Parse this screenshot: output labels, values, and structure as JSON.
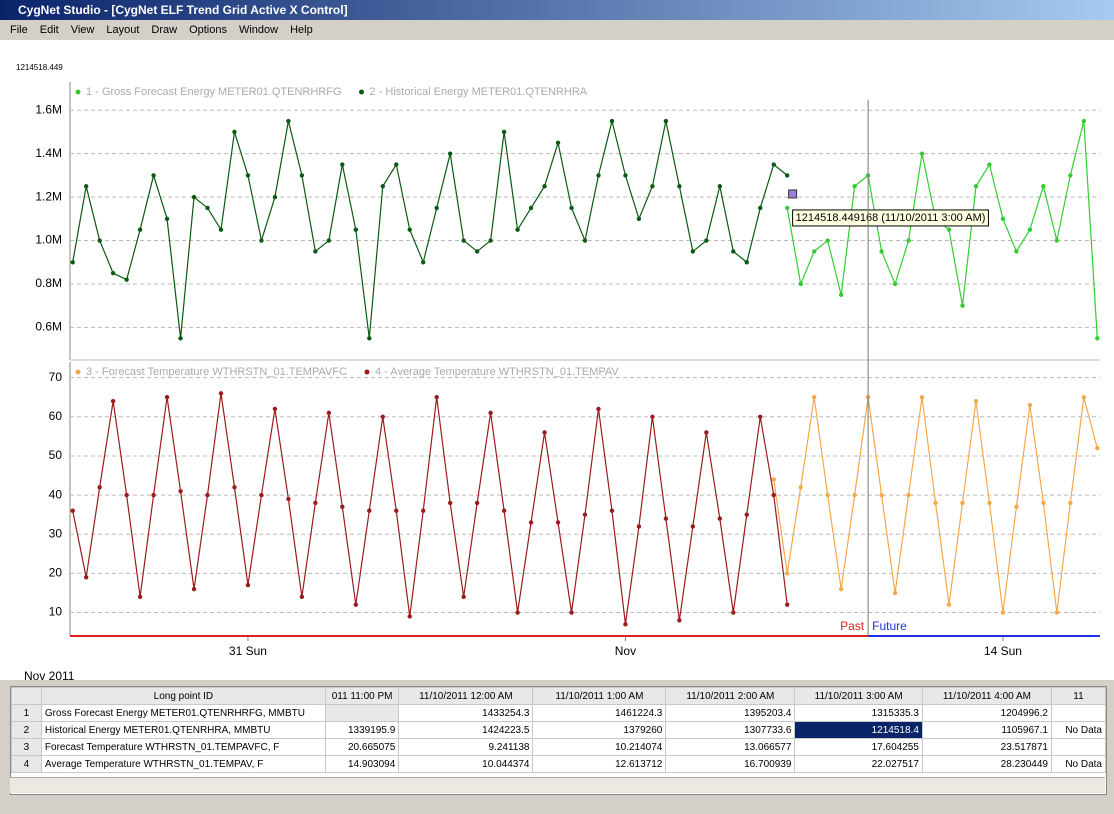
{
  "window": {
    "title": "CygNet Studio - [CygNet ELF Trend Grid Active X Control]",
    "menu": [
      "File",
      "Edit",
      "View",
      "Layout",
      "Draw",
      "Options",
      "Window",
      "Help"
    ],
    "readout": "1214518.449"
  },
  "chart_data": [
    {
      "type": "line",
      "xlim": [
        -3.3,
        15.8
      ],
      "ylim": [
        450000,
        1730000
      ],
      "yticks": [
        {
          "value": 600000,
          "label": "0.6M"
        },
        {
          "value": 800000,
          "label": "0.8M"
        },
        {
          "value": 1000000,
          "label": "1.0M"
        },
        {
          "value": 1200000,
          "label": "1.2M"
        },
        {
          "value": 1400000,
          "label": "1.4M"
        },
        {
          "value": 1600000,
          "label": "1.6M"
        }
      ],
      "grid": true,
      "series": [
        {
          "name": "1 - Gross Forecast Energy METER01.QTENRHRFG",
          "color": "#33cc33",
          "x": [
            10,
            10.25,
            10.5,
            10.75,
            11,
            11.25,
            11.5,
            11.75,
            12,
            12.25,
            12.5,
            12.75,
            13,
            13.25,
            13.5,
            13.75,
            14,
            14.25,
            14.5,
            14.75,
            15,
            15.25,
            15.5,
            15.75
          ],
          "values": [
            1150000,
            800000,
            950000,
            1000000,
            750000,
            1250000,
            1300000,
            950000,
            800000,
            1000000,
            1400000,
            1100000,
            1050000,
            700000,
            1250000,
            1350000,
            1100000,
            950000,
            1050000,
            1250000,
            1000000,
            1300000,
            1550000,
            550000
          ]
        },
        {
          "name": "2 - Historical Energy METER01.QTENRHRA",
          "color": "#0b5a12",
          "x": [
            -3.25,
            -3,
            -2.75,
            -2.5,
            -2.25,
            -2,
            -1.75,
            -1.5,
            -1.25,
            -1,
            -0.75,
            -0.5,
            -0.25,
            0,
            0.25,
            0.5,
            0.75,
            1,
            1.25,
            1.5,
            1.75,
            2,
            2.25,
            2.5,
            2.75,
            3,
            3.25,
            3.5,
            3.75,
            4,
            4.25,
            4.5,
            4.75,
            5,
            5.25,
            5.5,
            5.75,
            6,
            6.25,
            6.5,
            6.75,
            7,
            7.25,
            7.5,
            7.75,
            8,
            8.25,
            8.5,
            8.75,
            9,
            9.25,
            9.5,
            9.75,
            10
          ],
          "values": [
            900000,
            1250000,
            1000000,
            850000,
            820000,
            1050000,
            1300000,
            1100000,
            550000,
            1200000,
            1150000,
            1050000,
            1500000,
            1300000,
            1000000,
            1200000,
            1550000,
            1300000,
            950000,
            1000000,
            1350000,
            1050000,
            550000,
            1250000,
            1350000,
            1050000,
            900000,
            1150000,
            1400000,
            1000000,
            950000,
            1000000,
            1500000,
            1050000,
            1150000,
            1250000,
            1450000,
            1150000,
            1000000,
            1300000,
            1550000,
            1300000,
            1100000,
            1250000,
            1550000,
            1250000,
            950000,
            1000000,
            1250000,
            950000,
            900000,
            1150000,
            1350000,
            1300000
          ]
        }
      ],
      "tooltip": {
        "x": 10.1,
        "y": 1214518.449,
        "text": "1214518.449168 (11/10/2011 3:00 AM)"
      }
    },
    {
      "type": "line",
      "xlim": [
        -3.3,
        15.8
      ],
      "ylim": [
        4,
        74
      ],
      "yticks": [
        10,
        20,
        30,
        40,
        50,
        60,
        70
      ],
      "grid": true,
      "xticks": [
        {
          "value": 0,
          "label": "31 Sun"
        },
        {
          "value": 7,
          "label": "Nov"
        },
        {
          "value": 14,
          "label": "14 Sun"
        }
      ],
      "series": [
        {
          "name": "3 - Forecast Temperature WTHRSTN_01.TEMPAVFC",
          "color": "#f5a84a",
          "x": [
            9.75,
            10,
            10.25,
            10.5,
            10.75,
            11,
            11.25,
            11.5,
            11.75,
            12,
            12.25,
            12.5,
            12.75,
            13,
            13.25,
            13.5,
            13.75,
            14,
            14.25,
            14.5,
            14.75,
            15,
            15.25,
            15.5,
            15.75
          ],
          "values": [
            44,
            20,
            42,
            65,
            40,
            16,
            40,
            65,
            40,
            15,
            40,
            65,
            38,
            12,
            38,
            64,
            38,
            10,
            37,
            63,
            38,
            10,
            38,
            65,
            52
          ]
        },
        {
          "name": "4 - Average Temperature WTHRSTN_01.TEMPAV",
          "color": "#9b1c1c",
          "x": [
            -3.25,
            -3,
            -2.75,
            -2.5,
            -2.25,
            -2,
            -1.75,
            -1.5,
            -1.25,
            -1,
            -0.75,
            -0.5,
            -0.25,
            0,
            0.25,
            0.5,
            0.75,
            1,
            1.25,
            1.5,
            1.75,
            2,
            2.25,
            2.5,
            2.75,
            3,
            3.25,
            3.5,
            3.75,
            4,
            4.25,
            4.5,
            4.75,
            5,
            5.25,
            5.5,
            5.75,
            6,
            6.25,
            6.5,
            6.75,
            7,
            7.25,
            7.5,
            7.75,
            8,
            8.25,
            8.5,
            8.75,
            9,
            9.25,
            9.5,
            9.75,
            10
          ],
          "values": [
            36,
            19,
            42,
            64,
            40,
            14,
            40,
            65,
            41,
            16,
            40,
            66,
            42,
            17,
            40,
            62,
            39,
            14,
            38,
            61,
            37,
            12,
            36,
            60,
            36,
            9,
            36,
            65,
            38,
            14,
            38,
            61,
            36,
            10,
            33,
            56,
            33,
            10,
            35,
            62,
            36,
            7,
            32,
            60,
            34,
            8,
            32,
            56,
            34,
            10,
            35,
            60,
            40,
            12
          ]
        }
      ],
      "timeline": {
        "now": 11.5,
        "past": "Past",
        "future": "Future"
      }
    }
  ],
  "month_label": "Nov 2011",
  "table": {
    "header": [
      "Long point ID",
      "011 11:00 PM",
      "11/10/2011 12:00 AM",
      "11/10/2011 1:00 AM",
      "11/10/2011 2:00 AM",
      "11/10/2011 3:00 AM",
      "11/10/2011 4:00 AM",
      "11"
    ],
    "rows": [
      {
        "num": "1",
        "cells": [
          "Gross Forecast Energy METER01.QTENRHRFG, MMBTU",
          null,
          "1433254.3",
          "1461224.3",
          "1395203.4",
          "1315335.3",
          "1204996.2",
          null
        ]
      },
      {
        "num": "2",
        "cells": [
          "Historical Energy METER01.QTENRHRA, MMBTU",
          "1339195.9",
          "1424223.5",
          "1379260",
          "1307733.6",
          "1214518.4",
          "1105967.1",
          "No Data"
        ]
      },
      {
        "num": "3",
        "cells": [
          "Forecast Temperature WTHRSTN_01.TEMPAVFC, F",
          "20.665075",
          "9.241138",
          "10.214074",
          "13.066577",
          "17.604255",
          "23.517871",
          null
        ]
      },
      {
        "num": "4",
        "cells": [
          "Average Temperature WTHRSTN_01.TEMPAV, F",
          "14.903094",
          "10.044374",
          "12.613712",
          "16.700939",
          "22.027517",
          "28.230449",
          "No Data"
        ]
      }
    ]
  }
}
